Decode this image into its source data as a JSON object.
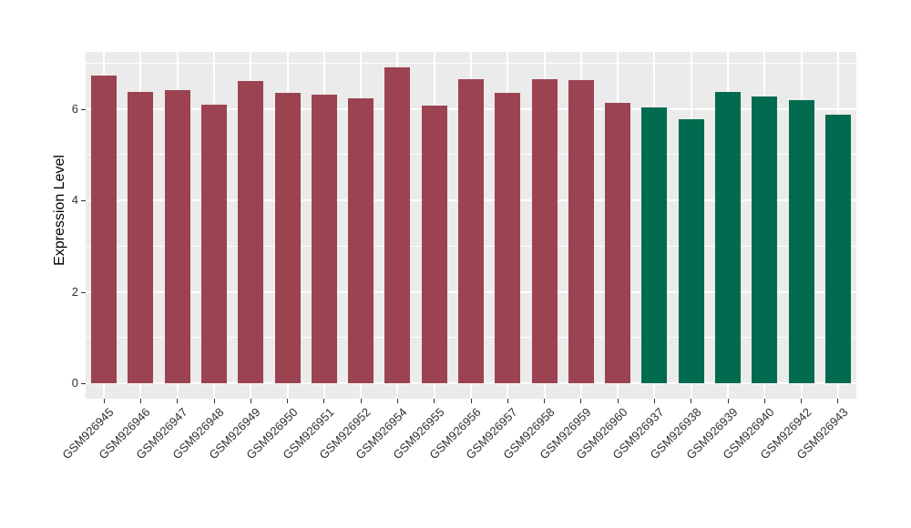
{
  "chart_data": {
    "type": "bar",
    "title": "",
    "xlabel": "",
    "ylabel": "Expression Level",
    "categories": [
      "GSM926945",
      "GSM926946",
      "GSM926947",
      "GSM926948",
      "GSM926949",
      "GSM926950",
      "GSM926951",
      "GSM926952",
      "GSM926954",
      "GSM926955",
      "GSM926956",
      "GSM926957",
      "GSM926958",
      "GSM926959",
      "GSM926960",
      "GSM926937",
      "GSM926938",
      "GSM926939",
      "GSM926940",
      "GSM926942",
      "GSM926943"
    ],
    "values": [
      6.72,
      6.36,
      6.41,
      6.08,
      6.61,
      6.35,
      6.3,
      6.23,
      6.9,
      6.07,
      6.65,
      6.35,
      6.65,
      6.63,
      6.12,
      6.03,
      5.77,
      6.37,
      6.27,
      6.19,
      5.87
    ],
    "bar_colors": [
      "#9B4351",
      "#9B4351",
      "#9B4351",
      "#9B4351",
      "#9B4351",
      "#9B4351",
      "#9B4351",
      "#9B4351",
      "#9B4351",
      "#9B4351",
      "#9B4351",
      "#9B4351",
      "#9B4351",
      "#9B4351",
      "#9B4351",
      "#006B4E",
      "#006B4E",
      "#006B4E",
      "#006B4E",
      "#006B4E",
      "#006B4E"
    ],
    "group_colors": {
      "group1": "#9B4351",
      "group2": "#006B4E"
    },
    "y_ticks": [
      0,
      2,
      4,
      6
    ],
    "y_tick_labels": [
      "0",
      "2",
      "4",
      "6"
    ],
    "y_minor_gridlines": [
      1,
      3,
      5,
      7
    ],
    "ylim": [
      -0.35,
      7.23
    ],
    "x_label_rotation_deg": 45,
    "legend_position": "none",
    "grid": "on",
    "panel_background": "#EBEBEB",
    "gridline_color": "#FFFFFF",
    "tick_color": "#333333"
  }
}
